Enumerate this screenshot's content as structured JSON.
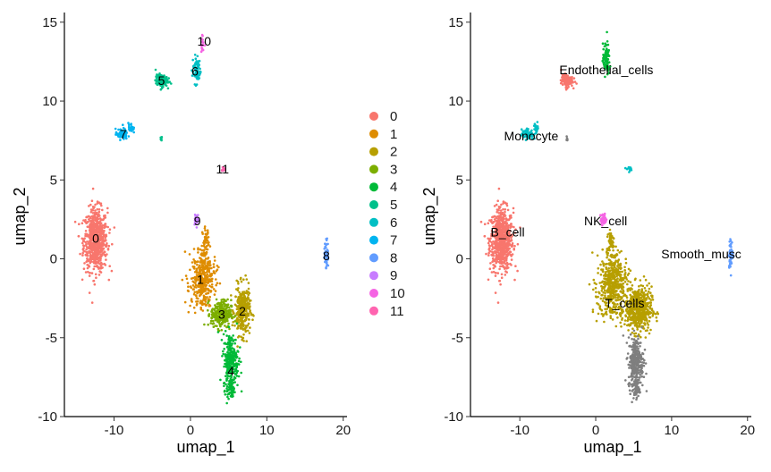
{
  "chart_data": [
    {
      "type": "scatter",
      "xlabel": "umap_1",
      "ylabel": "umap_2",
      "xlim": [
        -16.5,
        20.5
      ],
      "ylim": [
        -10,
        15.5
      ],
      "xticks": [
        -10,
        0,
        10,
        20
      ],
      "yticks": [
        -10,
        -5,
        0,
        5,
        10,
        15
      ],
      "xtick_labels": [
        "-10",
        "0",
        "10",
        "20"
      ],
      "ytick_labels": [
        "-10",
        "-5",
        "0",
        "5",
        "10",
        "15"
      ],
      "grid": false,
      "legend_position": "right",
      "legend": [
        "0",
        "1",
        "2",
        "3",
        "4",
        "5",
        "6",
        "7",
        "8",
        "9",
        "10",
        "11"
      ],
      "colors": [
        "#F8766D",
        "#DE8C00",
        "#B79F00",
        "#7CAE00",
        "#00BA38",
        "#00C08B",
        "#00BFC4",
        "#00B4F0",
        "#619CFF",
        "#C77CFF",
        "#F564E3",
        "#FF64B0"
      ],
      "clusters": [
        {
          "label": "0",
          "x": -12.4,
          "y": 1.3
        },
        {
          "label": "1",
          "x": 1.3,
          "y": -1.3
        },
        {
          "label": "2",
          "x": 6.8,
          "y": -3.3
        },
        {
          "label": "3",
          "x": 4.1,
          "y": -3.5
        },
        {
          "label": "4",
          "x": 5.3,
          "y": -7.1
        },
        {
          "label": "5",
          "x": -3.8,
          "y": 11.3
        },
        {
          "label": "6",
          "x": 0.6,
          "y": 11.9
        },
        {
          "label": "7",
          "x": -8.8,
          "y": 7.9
        },
        {
          "label": "8",
          "x": 17.8,
          "y": 0.2
        },
        {
          "label": "9",
          "x": 0.9,
          "y": 2.4
        },
        {
          "label": "10",
          "x": 1.8,
          "y": 13.8
        },
        {
          "label": "11",
          "x": 4.2,
          "y": 5.7
        }
      ]
    },
    {
      "type": "scatter",
      "xlabel": "umap_1",
      "ylabel": "umap_2",
      "xlim": [
        -16.5,
        20.5
      ],
      "ylim": [
        -10,
        15.5
      ],
      "xticks": [
        -10,
        0,
        10,
        20
      ],
      "yticks": [
        -10,
        -5,
        0,
        5,
        10,
        15
      ],
      "xtick_labels": [
        "-10",
        "0",
        "10",
        "20"
      ],
      "ytick_labels": [
        "-10",
        "-5",
        "0",
        "5",
        "10",
        "15"
      ],
      "grid": false,
      "legend_position": "none",
      "colors": [
        "#F8766D",
        "#00C08B",
        "#00BFC4",
        "#B79F00",
        "#F564E3",
        "#619CFF",
        "#7F7F7F",
        "#00BA38"
      ],
      "clusters": [
        {
          "label": "B_cell",
          "x": -11.6,
          "y": 1.7
        },
        {
          "label": "Endothelial_cells",
          "x": 1.4,
          "y": 12.0
        },
        {
          "label": "Monocyte",
          "x": -8.5,
          "y": 7.8
        },
        {
          "label": "NK_cell",
          "x": 1.3,
          "y": 2.4
        },
        {
          "label": "Smooth_musc",
          "x": 13.9,
          "y": 0.3
        },
        {
          "label": "T_cells",
          "x": 3.8,
          "y": -2.8
        }
      ]
    }
  ]
}
